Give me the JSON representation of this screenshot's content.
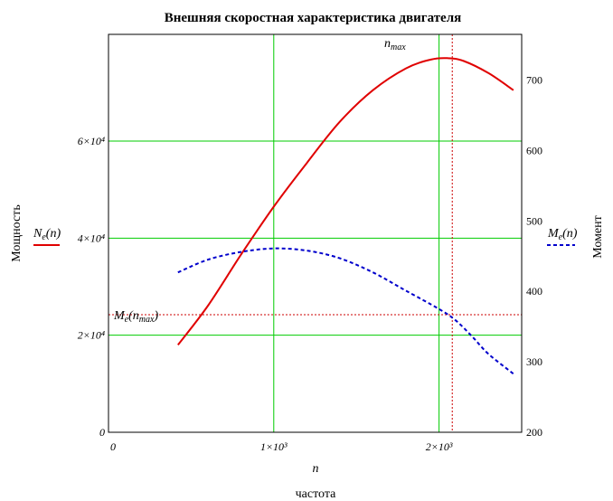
{
  "colors": {
    "power": "#e00000",
    "torque": "#0000cc",
    "grid": "#00cc00",
    "marker": "#cc0000",
    "frame": "#000000",
    "background": "#ffffff"
  },
  "chart_data": {
    "type": "line",
    "title": "Внешняя скоростная характеристика двигателя",
    "xlabel": "частота",
    "x_symbol": "n",
    "ylabel_left": "Мощность",
    "ylabel_right": "Момент",
    "xlim": [
      0,
      2500
    ],
    "ylim_left": [
      0,
      82000
    ],
    "ylim_right": [
      200,
      765
    ],
    "grid": true,
    "x_ticks": [
      {
        "value": 0,
        "label": "0"
      },
      {
        "value": 1000,
        "label": "1×10³"
      },
      {
        "value": 2000,
        "label": "2×10³"
      }
    ],
    "y_left_ticks": [
      {
        "value": 0,
        "label": "0"
      },
      {
        "value": 20000,
        "label": "2×10⁴"
      },
      {
        "value": 40000,
        "label": "4×10⁴"
      },
      {
        "value": 60000,
        "label": "6×10⁴"
      }
    ],
    "y_right_ticks": [
      {
        "value": 200,
        "label": "200"
      },
      {
        "value": 300,
        "label": "300"
      },
      {
        "value": 400,
        "label": "400"
      },
      {
        "value": 500,
        "label": "500"
      },
      {
        "value": 600,
        "label": "600"
      },
      {
        "value": 700,
        "label": "700"
      }
    ],
    "series": [
      {
        "name": "Ne(n)",
        "axis": "left",
        "style": "solid",
        "x": [
          420,
          600,
          800,
          1000,
          1200,
          1400,
          1600,
          1800,
          1950,
          2050,
          2150,
          2300,
          2450
        ],
        "y": [
          18000,
          26000,
          36500,
          46500,
          55500,
          64000,
          70500,
          75000,
          76800,
          77100,
          76500,
          74000,
          70500
        ]
      },
      {
        "name": "Me(n)",
        "axis": "right",
        "style": "dashed",
        "x": [
          420,
          600,
          800,
          1000,
          1200,
          1400,
          1600,
          1800,
          2000,
          2100,
          2200,
          2300,
          2450
        ],
        "y": [
          427,
          445,
          456,
          461,
          458,
          447,
          427,
          401,
          375,
          359,
          336,
          311,
          283
        ]
      }
    ],
    "markers": [
      {
        "type": "vertical",
        "label": "nmax",
        "x": 2080
      },
      {
        "type": "horizontal",
        "label": "Me(nmax)",
        "axis": "right",
        "y": 367
      }
    ],
    "legend": {
      "left": {
        "label": "Ne(n)",
        "placement": "left"
      },
      "right": {
        "label": "Me(n)",
        "placement": "right"
      }
    }
  }
}
